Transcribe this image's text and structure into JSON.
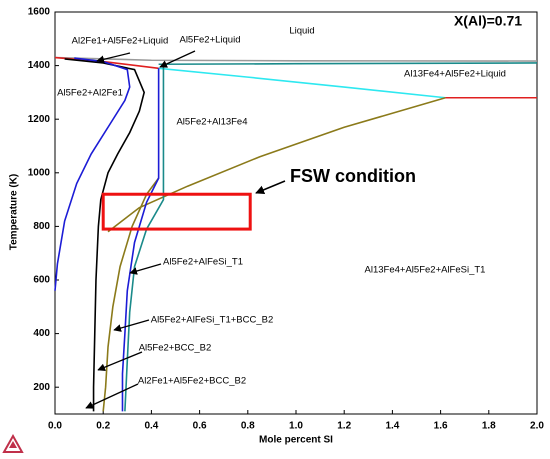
{
  "chart_data": {
    "type": "line",
    "title": "X(Al)=0.71",
    "xlabel": "Mole percent SI",
    "ylabel": "Temperature (K)",
    "xlim": [
      0,
      2
    ],
    "ylim": [
      100,
      1600
    ],
    "xticks": [
      {
        "value": 0,
        "label": "0.0"
      },
      0.2,
      0.4,
      0.6,
      0.8,
      {
        "value": 1,
        "label": "1.0"
      },
      1.2,
      1.4,
      1.6,
      1.8,
      {
        "value": 2,
        "label": "2.0"
      }
    ],
    "yticks": [
      200,
      400,
      600,
      800,
      1000,
      1200,
      1400,
      1600
    ],
    "series": [
      {
        "color": "#9a9a9a",
        "x": [
          0,
          0.4,
          1.0,
          2.0
        ],
        "values": [
          1430,
          1420,
          1418,
          1417
        ]
      },
      {
        "color": "#1a8a8a",
        "x": [
          0.43,
          1.0,
          2.0
        ],
        "values": [
          1405,
          1407,
          1410
        ]
      },
      {
        "color": "#2ee8f0",
        "x": [
          0.43,
          0.8,
          1.2,
          1.62
        ],
        "values": [
          1390,
          1357,
          1320,
          1280
        ]
      },
      {
        "color": "#e02020",
        "x": [
          1.62,
          2.0
        ],
        "values": [
          1280,
          1280
        ]
      },
      {
        "color": "#e02020",
        "x": [
          0,
          0.2,
          0.43
        ],
        "values": [
          1430,
          1415,
          1390
        ]
      },
      {
        "color": "#000000",
        "x": [
          0.04,
          0.2,
          0.33,
          0.37,
          0.35,
          0.31,
          0.26,
          0.22,
          0.19,
          0.18,
          0.17,
          0.165,
          0.16,
          0.16
        ],
        "values": [
          1425,
          1410,
          1385,
          1300,
          1230,
          1150,
          1070,
          1000,
          900,
          800,
          600,
          400,
          200,
          110
        ]
      },
      {
        "color": "#1c1cd6",
        "x": [
          0.08,
          0.2,
          0.3,
          0.31,
          0.29,
          0.22,
          0.15,
          0.09,
          0.04,
          0.01,
          0
        ],
        "values": [
          1428,
          1415,
          1385,
          1320,
          1270,
          1170,
          1070,
          960,
          820,
          660,
          560
        ]
      },
      {
        "color": "#8b7a1a",
        "x": [
          0.43,
          0.38,
          0.32,
          0.27,
          0.24,
          0.22,
          0.21,
          0.2
        ],
        "values": [
          980,
          920,
          800,
          650,
          500,
          350,
          200,
          110
        ]
      },
      {
        "color": "#8b7a1a",
        "x": [
          0.22,
          0.35,
          0.55,
          0.85,
          1.2,
          1.62
        ],
        "values": [
          780,
          870,
          950,
          1060,
          1170,
          1280
        ]
      },
      {
        "color": "#1c1cd6",
        "x": [
          0.43,
          0.43,
          0.38,
          0.33,
          0.3,
          0.29,
          0.28,
          0.28
        ],
        "values": [
          1390,
          980,
          890,
          740,
          560,
          400,
          250,
          110
        ]
      },
      {
        "color": "#1a8a8a",
        "x": [
          0.45,
          0.45,
          0.38,
          0.33,
          0.31,
          0.3,
          0.29
        ],
        "values": [
          1400,
          900,
          790,
          650,
          480,
          300,
          110
        ]
      }
    ],
    "annotations": [
      "Liquid",
      "Al2Fe1+Al5Fe2+Liquid",
      "Al5Fe2+Liquid",
      "Al13Fe4+Al5Fe2+Liquid",
      "Al5Fe2+Al2Fe1",
      "Al5Fe2+Al13Fe4",
      "Al5Fe2+AlFeSi_T1",
      "Al13Fe4+Al5Fe2+AlFeSi_T1",
      "Al5Fe2+AlFeSi_T1+BCC_B2",
      "Al5Fe2+BCC_B2",
      "Al2Fe1+Al5Fe2+BCC_B2"
    ],
    "highlight": {
      "label": "FSW condition",
      "x": [
        0.2,
        0.81
      ],
      "y": [
        790,
        920
      ],
      "color": "#ee1111"
    }
  }
}
